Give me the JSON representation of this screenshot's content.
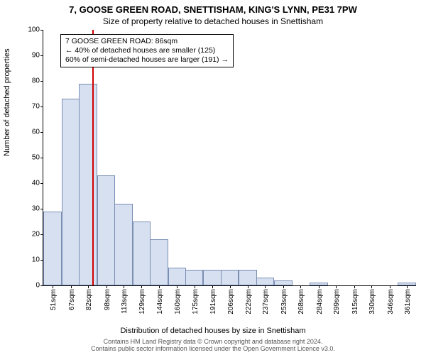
{
  "titles": {
    "main": "7, GOOSE GREEN ROAD, SNETTISHAM, KING'S LYNN, PE31 7PW",
    "sub": "Size of property relative to detached houses in Snettisham"
  },
  "axes": {
    "ylabel": "Number of detached properties",
    "xlabel": "Distribution of detached houses by size in Snettisham",
    "ylim": [
      0,
      100
    ],
    "ytick_step": 10,
    "yticks": [
      0,
      10,
      20,
      30,
      40,
      50,
      60,
      70,
      80,
      90,
      100
    ]
  },
  "footnote": {
    "line1": "Contains HM Land Registry data © Crown copyright and database right 2024.",
    "line2": "Contains public sector information licensed under the Open Government Licence v3.0."
  },
  "chart": {
    "type": "histogram",
    "bar_fill": "#d6e0f0",
    "bar_stroke": "#7a8db3",
    "background": "#ffffff",
    "marker_color": "#d00000",
    "marker_x_value": 86,
    "x_labels": [
      "51sqm",
      "67sqm",
      "82sqm",
      "98sqm",
      "113sqm",
      "129sqm",
      "144sqm",
      "160sqm",
      "175sqm",
      "191sqm",
      "206sqm",
      "222sqm",
      "237sqm",
      "253sqm",
      "268sqm",
      "284sqm",
      "299sqm",
      "315sqm",
      "330sqm",
      "346sqm",
      "361sqm"
    ],
    "x_numeric": [
      51,
      67,
      82,
      98,
      113,
      129,
      144,
      160,
      175,
      191,
      206,
      222,
      237,
      253,
      268,
      284,
      299,
      315,
      330,
      346,
      361
    ],
    "bars": [
      {
        "x": 51,
        "h": 29
      },
      {
        "x": 67,
        "h": 73
      },
      {
        "x": 82,
        "h": 79
      },
      {
        "x": 98,
        "h": 43
      },
      {
        "x": 113,
        "h": 32
      },
      {
        "x": 129,
        "h": 25
      },
      {
        "x": 144,
        "h": 18
      },
      {
        "x": 160,
        "h": 7
      },
      {
        "x": 175,
        "h": 6
      },
      {
        "x": 191,
        "h": 6
      },
      {
        "x": 206,
        "h": 6
      },
      {
        "x": 222,
        "h": 6
      },
      {
        "x": 237,
        "h": 3
      },
      {
        "x": 253,
        "h": 2
      },
      {
        "x": 268,
        "h": 0
      },
      {
        "x": 284,
        "h": 1
      },
      {
        "x": 299,
        "h": 0
      },
      {
        "x": 315,
        "h": 0
      },
      {
        "x": 330,
        "h": 0
      },
      {
        "x": 346,
        "h": 0
      },
      {
        "x": 361,
        "h": 1
      }
    ],
    "bin_width": 16
  },
  "annotation": {
    "line1": "7 GOOSE GREEN ROAD: 86sqm",
    "line2": "← 40% of detached houses are smaller (125)",
    "line3": "60% of semi-detached houses are larger (191) →"
  }
}
